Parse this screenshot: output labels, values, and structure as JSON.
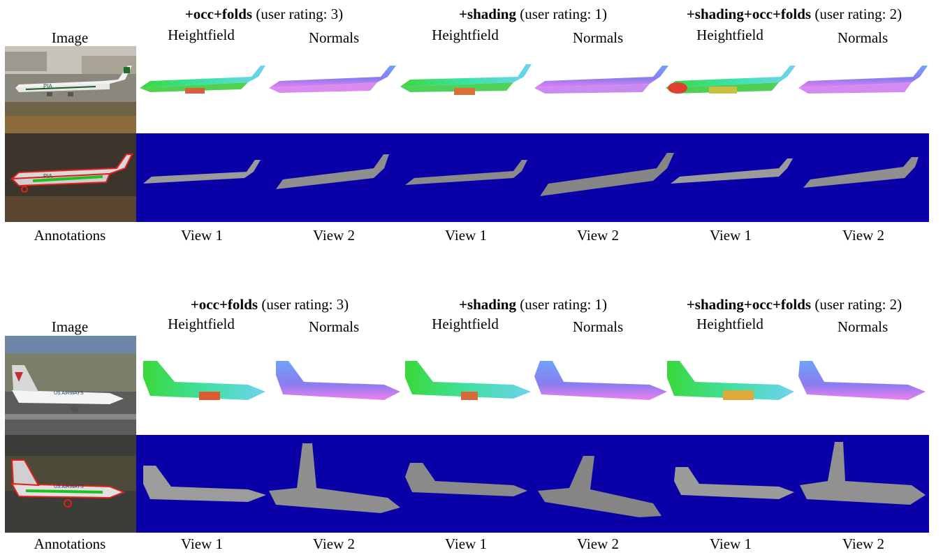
{
  "figure": {
    "blocks": [
      {
        "image_label": "Image",
        "annotations_label": "Annotations",
        "groups": [
          {
            "name": "+occ+folds",
            "rating": "(user rating: 3)",
            "col_a": "Heightfield",
            "col_b": "Normals",
            "view_a": "View 1",
            "view_b": "View 2"
          },
          {
            "name": "+shading",
            "rating": "(user rating: 1)",
            "col_a": "Heightfield",
            "col_b": "Normals",
            "view_a": "View 1",
            "view_b": "View 2"
          },
          {
            "name": "+shading+occ+folds",
            "rating": "(user rating: 2)",
            "col_a": "Heightfield",
            "col_b": "Normals",
            "view_a": "View 1",
            "view_b": "View 2"
          }
        ],
        "photo_text": "PIA"
      },
      {
        "image_label": "Image",
        "annotations_label": "Annotations",
        "groups": [
          {
            "name": "+occ+folds",
            "rating": "(user rating: 3)",
            "col_a": "Heightfield",
            "col_b": "Normals",
            "view_a": "View 1",
            "view_b": "View 2"
          },
          {
            "name": "+shading",
            "rating": "(user rating: 1)",
            "col_a": "Heightfield",
            "col_b": "Normals",
            "view_a": "View 1",
            "view_b": "View 2"
          },
          {
            "name": "+shading+occ+folds",
            "rating": "(user rating: 2)",
            "col_a": "Heightfield",
            "col_b": "Normals",
            "view_a": "View 1",
            "view_b": "View 2"
          }
        ],
        "photo_text": "US AIRWAYS"
      }
    ],
    "colors": {
      "render_background": "#0a00a8",
      "annotation_outline": "#e02020",
      "annotation_fill": "#20c020"
    }
  }
}
